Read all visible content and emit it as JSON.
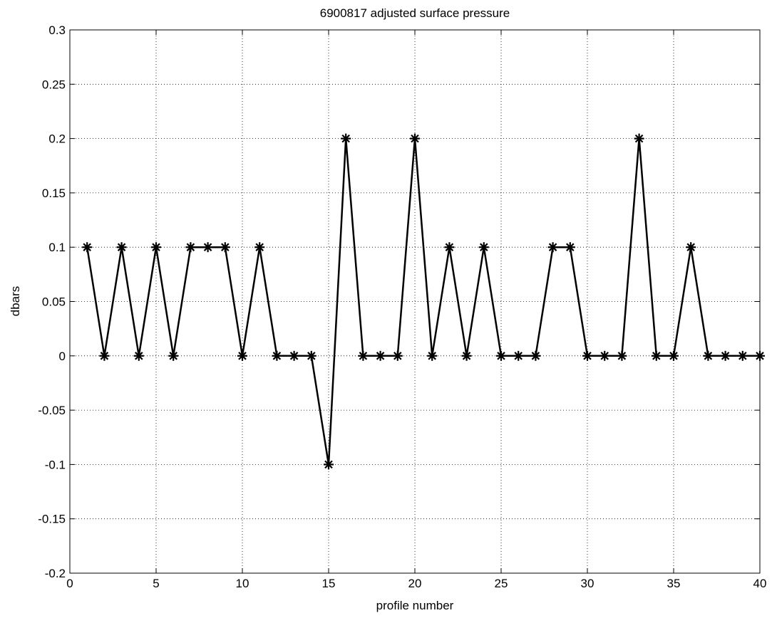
{
  "chart_data": {
    "type": "line",
    "title": "6900817 adjusted surface pressure",
    "xlabel": "profile number",
    "ylabel": "dbars",
    "xlim": [
      0,
      40
    ],
    "ylim": [
      -0.2,
      0.3
    ],
    "xticks": [
      0,
      5,
      10,
      15,
      20,
      25,
      30,
      35,
      40
    ],
    "xtick_labels": [
      "0",
      "5",
      "10",
      "15",
      "20",
      "25",
      "30",
      "35",
      "40"
    ],
    "yticks": [
      -0.2,
      -0.15,
      -0.1,
      -0.05,
      0,
      0.05,
      0.1,
      0.15,
      0.2,
      0.25,
      0.3
    ],
    "ytick_labels": [
      "-0.2",
      "-0.15",
      "-0.1",
      "-0.05",
      "0",
      "0.05",
      "0.1",
      "0.15",
      "0.2",
      "0.25",
      "0.3"
    ],
    "grid": true,
    "legend": "none",
    "marker": "asterisk",
    "line_color": "#000000",
    "series": [
      {
        "x": [
          1,
          2,
          3,
          4,
          5,
          6,
          7,
          8,
          9,
          10,
          11,
          12,
          13,
          14,
          15,
          16,
          17,
          18,
          19,
          20,
          21,
          22,
          23,
          24,
          25,
          26,
          27,
          28,
          29,
          30,
          31,
          32,
          33,
          34,
          35,
          36,
          37,
          38,
          39,
          40
        ],
        "values": [
          0.1,
          0,
          0.1,
          0,
          0.1,
          0,
          0.1,
          0.1,
          0.1,
          0,
          0.1,
          0,
          0,
          0,
          -0.1,
          0.2,
          0,
          0,
          0,
          0.2,
          0,
          0.1,
          0,
          0.1,
          0,
          0,
          0,
          0.1,
          0.1,
          0,
          0,
          0,
          0.2,
          0,
          0,
          0.1,
          0,
          0,
          0,
          0
        ]
      }
    ]
  }
}
